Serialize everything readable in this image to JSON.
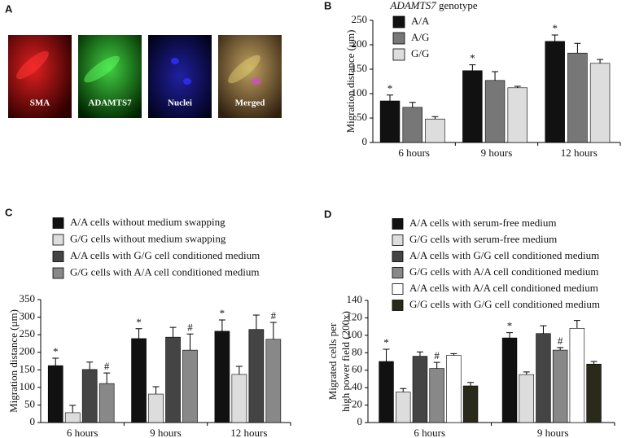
{
  "image_panel": {
    "label": "A",
    "captions": [
      "SMA",
      "ADAMTS7",
      "Nuclei",
      "Merged"
    ]
  },
  "chart_data": [
    {
      "type": "bar",
      "panel_label": "B",
      "legend_title_gene": "ADAMTS7",
      "legend_title_suffix": "genotype",
      "y_label": [
        "Migration distance (μm)"
      ],
      "categories": [
        "6 hours",
        "9 hours",
        "12 hours"
      ],
      "ylim": [
        0,
        250
      ],
      "yticks": [
        0,
        50,
        100,
        150,
        200,
        250
      ],
      "series": [
        {
          "name": "A/A",
          "color": "#111111",
          "values": [
            85,
            147,
            207
          ],
          "errors": [
            12,
            12,
            13
          ],
          "markers": [
            "*",
            "*",
            "*"
          ]
        },
        {
          "name": "A/G",
          "color": "#777777",
          "values": [
            72,
            127,
            183
          ],
          "errors": [
            10,
            18,
            20
          ]
        },
        {
          "name": "G/G",
          "color": "#dddddd",
          "values": [
            48,
            112,
            162
          ],
          "errors": [
            5,
            3,
            8
          ]
        }
      ]
    },
    {
      "type": "bar",
      "panel_label": "C",
      "y_label": [
        "Migration distance (μm)"
      ],
      "categories": [
        "6 hours",
        "9 hours",
        "12 hours"
      ],
      "ylim": [
        0,
        350
      ],
      "yticks": [
        0,
        50,
        100,
        150,
        200,
        250,
        300,
        350
      ],
      "series": [
        {
          "name": "A/A cells without medium swapping",
          "color": "#111111",
          "values": [
            162,
            239,
            260
          ],
          "errors": [
            21,
            28,
            32
          ],
          "markers": [
            "*",
            "*",
            "*"
          ]
        },
        {
          "name": "G/G cells without medium swapping",
          "color": "#dddddd",
          "values": [
            28,
            81,
            137
          ],
          "errors": [
            21,
            21,
            23
          ]
        },
        {
          "name": "A/A cells with G/G cell conditioned medium",
          "color": "#444444",
          "values": [
            151,
            243,
            265
          ],
          "errors": [
            21,
            28,
            41
          ]
        },
        {
          "name": "G/G cells with A/A cell conditioned medium",
          "color": "#888888",
          "values": [
            111,
            206,
            237
          ],
          "errors": [
            30,
            46,
            48
          ],
          "markers": [
            "#",
            "#",
            "#"
          ]
        }
      ]
    },
    {
      "type": "bar",
      "panel_label": "D",
      "y_label": [
        "Migrated cells per",
        "high power field (200x)"
      ],
      "categories": [
        "6 hours",
        "9 hours"
      ],
      "ylim": [
        0,
        140
      ],
      "yticks": [
        0,
        20,
        40,
        60,
        80,
        100,
        120,
        140
      ],
      "series": [
        {
          "name": "A/A cells with serum-free medium",
          "color": "#111111",
          "values": [
            70,
            97
          ],
          "errors": [
            14,
            6
          ],
          "markers": [
            "*",
            "*"
          ]
        },
        {
          "name": "G/G cells with serum-free medium",
          "color": "#dddddd",
          "values": [
            35,
            55
          ],
          "errors": [
            4,
            3
          ]
        },
        {
          "name": "A/A cells with G/G cell conditioned medium",
          "color": "#444444",
          "values": [
            76,
            102
          ],
          "errors": [
            5,
            9
          ]
        },
        {
          "name": "G/G cells with A/A cell conditioned medium",
          "color": "#888888",
          "values": [
            62,
            83
          ],
          "errors": [
            7,
            3
          ],
          "markers": [
            "#",
            "#"
          ]
        },
        {
          "name": "A/A cells with A/A cell conditioned medium",
          "color": "#ffffff",
          "values": [
            77,
            108
          ],
          "errors": [
            2,
            9
          ]
        },
        {
          "name": "G/G cells with G/G cell conditioned medium",
          "color": "#2a2a1a",
          "values": [
            42,
            67
          ],
          "errors": [
            4,
            3
          ]
        }
      ]
    }
  ]
}
